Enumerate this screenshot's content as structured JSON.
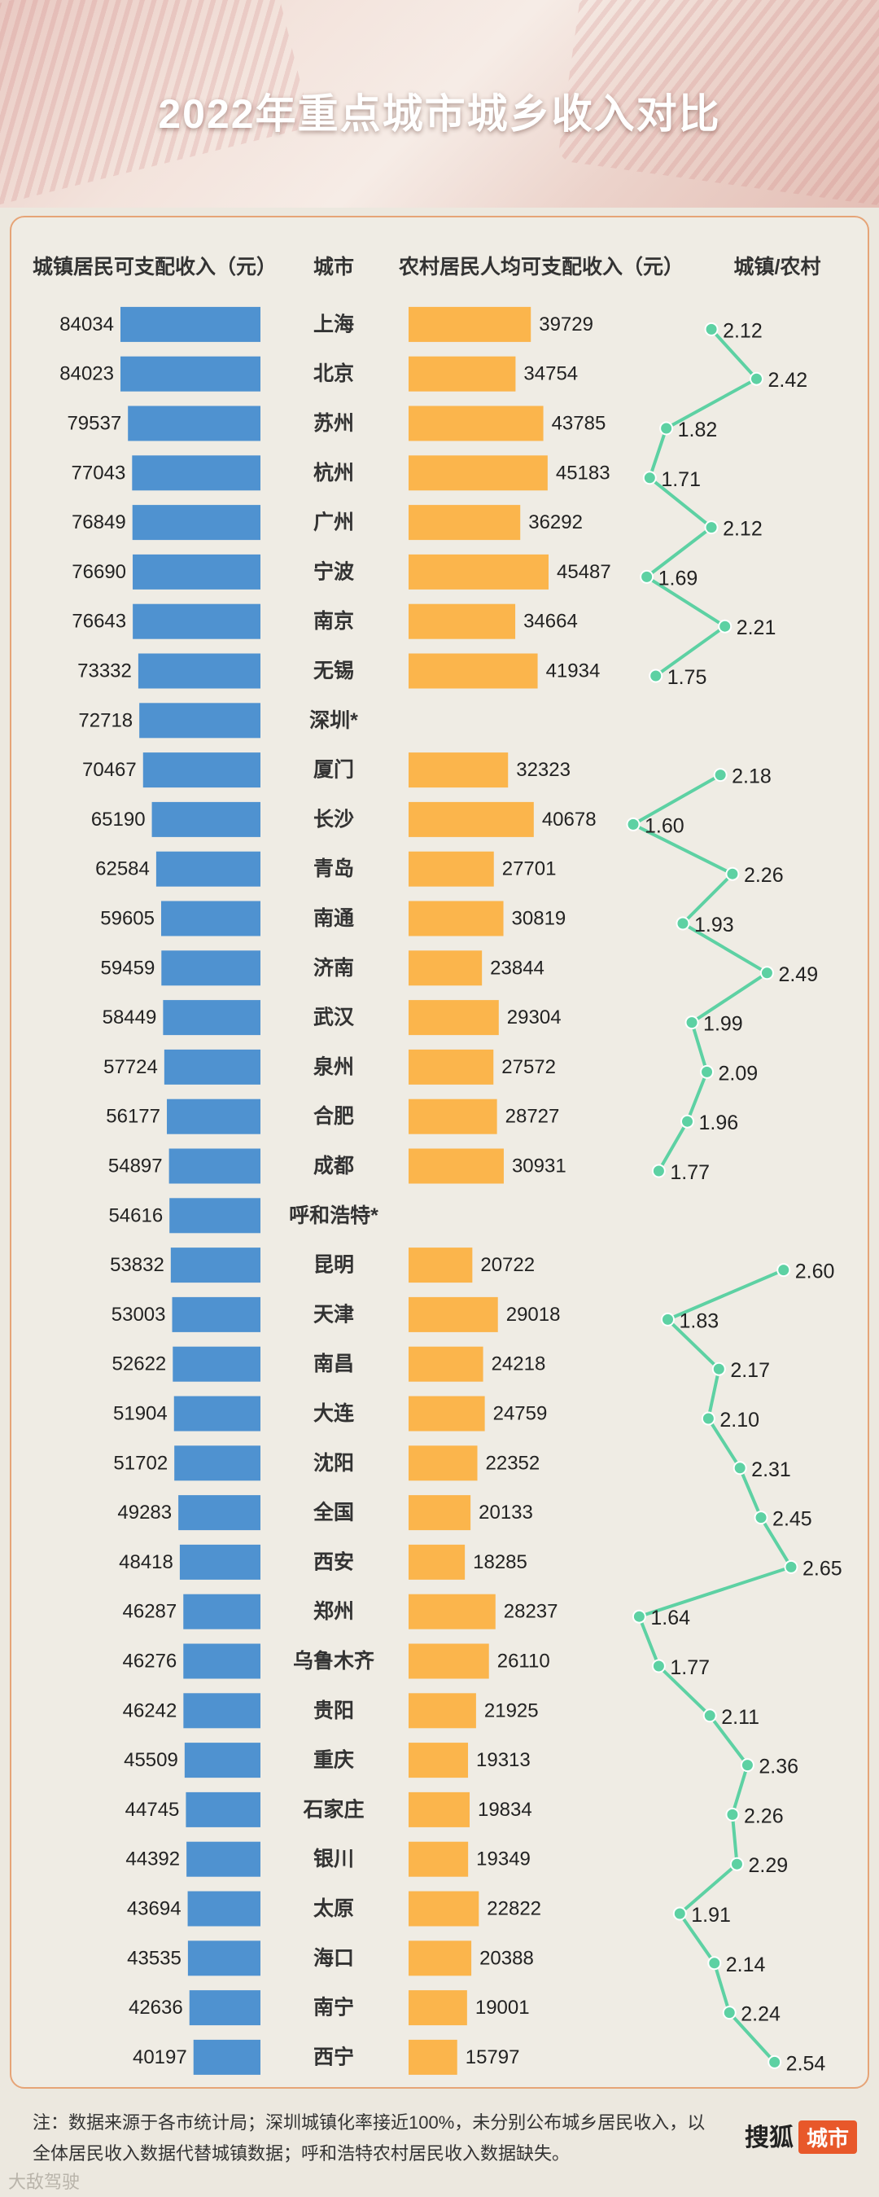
{
  "page": {
    "title": "2022年重点城市城乡收入对比",
    "headers": {
      "urban": "城镇居民可支配收入（元）",
      "city": "城市",
      "rural": "农村居民人均可支配收入（元）",
      "ratio": "城镇/农村"
    },
    "footnote": "注：数据来源于各市统计局；深圳城镇化率接近100%，未分别公布城乡居民收入，以全体居民收入数据代替城镇数据；呼和浩特农村居民收入数据缺失。",
    "brand": "搜狐",
    "brand_badge": "城市",
    "watermark": "大敌驾驶"
  },
  "colors": {
    "urban_bar": "#4f92d0",
    "rural_bar": "#fbb54c",
    "ratio_line": "#5dd1a3"
  },
  "chart_data": {
    "type": "bar",
    "title": "2022年重点城市城乡收入对比",
    "categories": [
      "上海",
      "北京",
      "苏州",
      "杭州",
      "广州",
      "宁波",
      "南京",
      "无锡",
      "深圳*",
      "厦门",
      "长沙",
      "青岛",
      "南通",
      "济南",
      "武汉",
      "泉州",
      "合肥",
      "成都",
      "呼和浩特*",
      "昆明",
      "天津",
      "南昌",
      "大连",
      "沈阳",
      "全国",
      "西安",
      "郑州",
      "乌鲁木齐",
      "贵阳",
      "重庆",
      "石家庄",
      "银川",
      "太原",
      "海口",
      "南宁",
      "西宁"
    ],
    "series": [
      {
        "name": "城镇居民可支配收入（元）",
        "values": [
          84034,
          84023,
          79537,
          77043,
          76849,
          76690,
          76643,
          73332,
          72718,
          70467,
          65190,
          62584,
          59605,
          59459,
          58449,
          57724,
          56177,
          54897,
          54616,
          53832,
          53003,
          52622,
          51904,
          51702,
          49283,
          48418,
          46287,
          46276,
          46242,
          45509,
          44745,
          44392,
          43694,
          43535,
          42636,
          40197
        ]
      },
      {
        "name": "农村居民人均可支配收入（元）",
        "values": [
          39729,
          34754,
          43785,
          45183,
          36292,
          45487,
          34664,
          41934,
          null,
          32323,
          40678,
          27701,
          30819,
          23844,
          29304,
          27572,
          28727,
          30931,
          null,
          20722,
          29018,
          24218,
          24759,
          22352,
          20133,
          18285,
          28237,
          26110,
          21925,
          19313,
          19834,
          19349,
          22822,
          20388,
          19001,
          15797
        ]
      },
      {
        "name": "城镇/农村",
        "values": [
          "2.12",
          "2.42",
          "1.82",
          "1.71",
          "2.12",
          "1.69",
          "2.21",
          "1.75",
          null,
          "2.18",
          "1.60",
          "2.26",
          "1.93",
          "2.49",
          "1.99",
          "2.09",
          "1.96",
          "1.77",
          null,
          "2.60",
          "1.83",
          "2.17",
          "2.10",
          "2.31",
          "2.45",
          "2.65",
          "1.64",
          "1.77",
          "2.11",
          "2.36",
          "2.26",
          "2.29",
          "1.91",
          "2.14",
          "2.24",
          "2.54"
        ]
      }
    ]
  }
}
